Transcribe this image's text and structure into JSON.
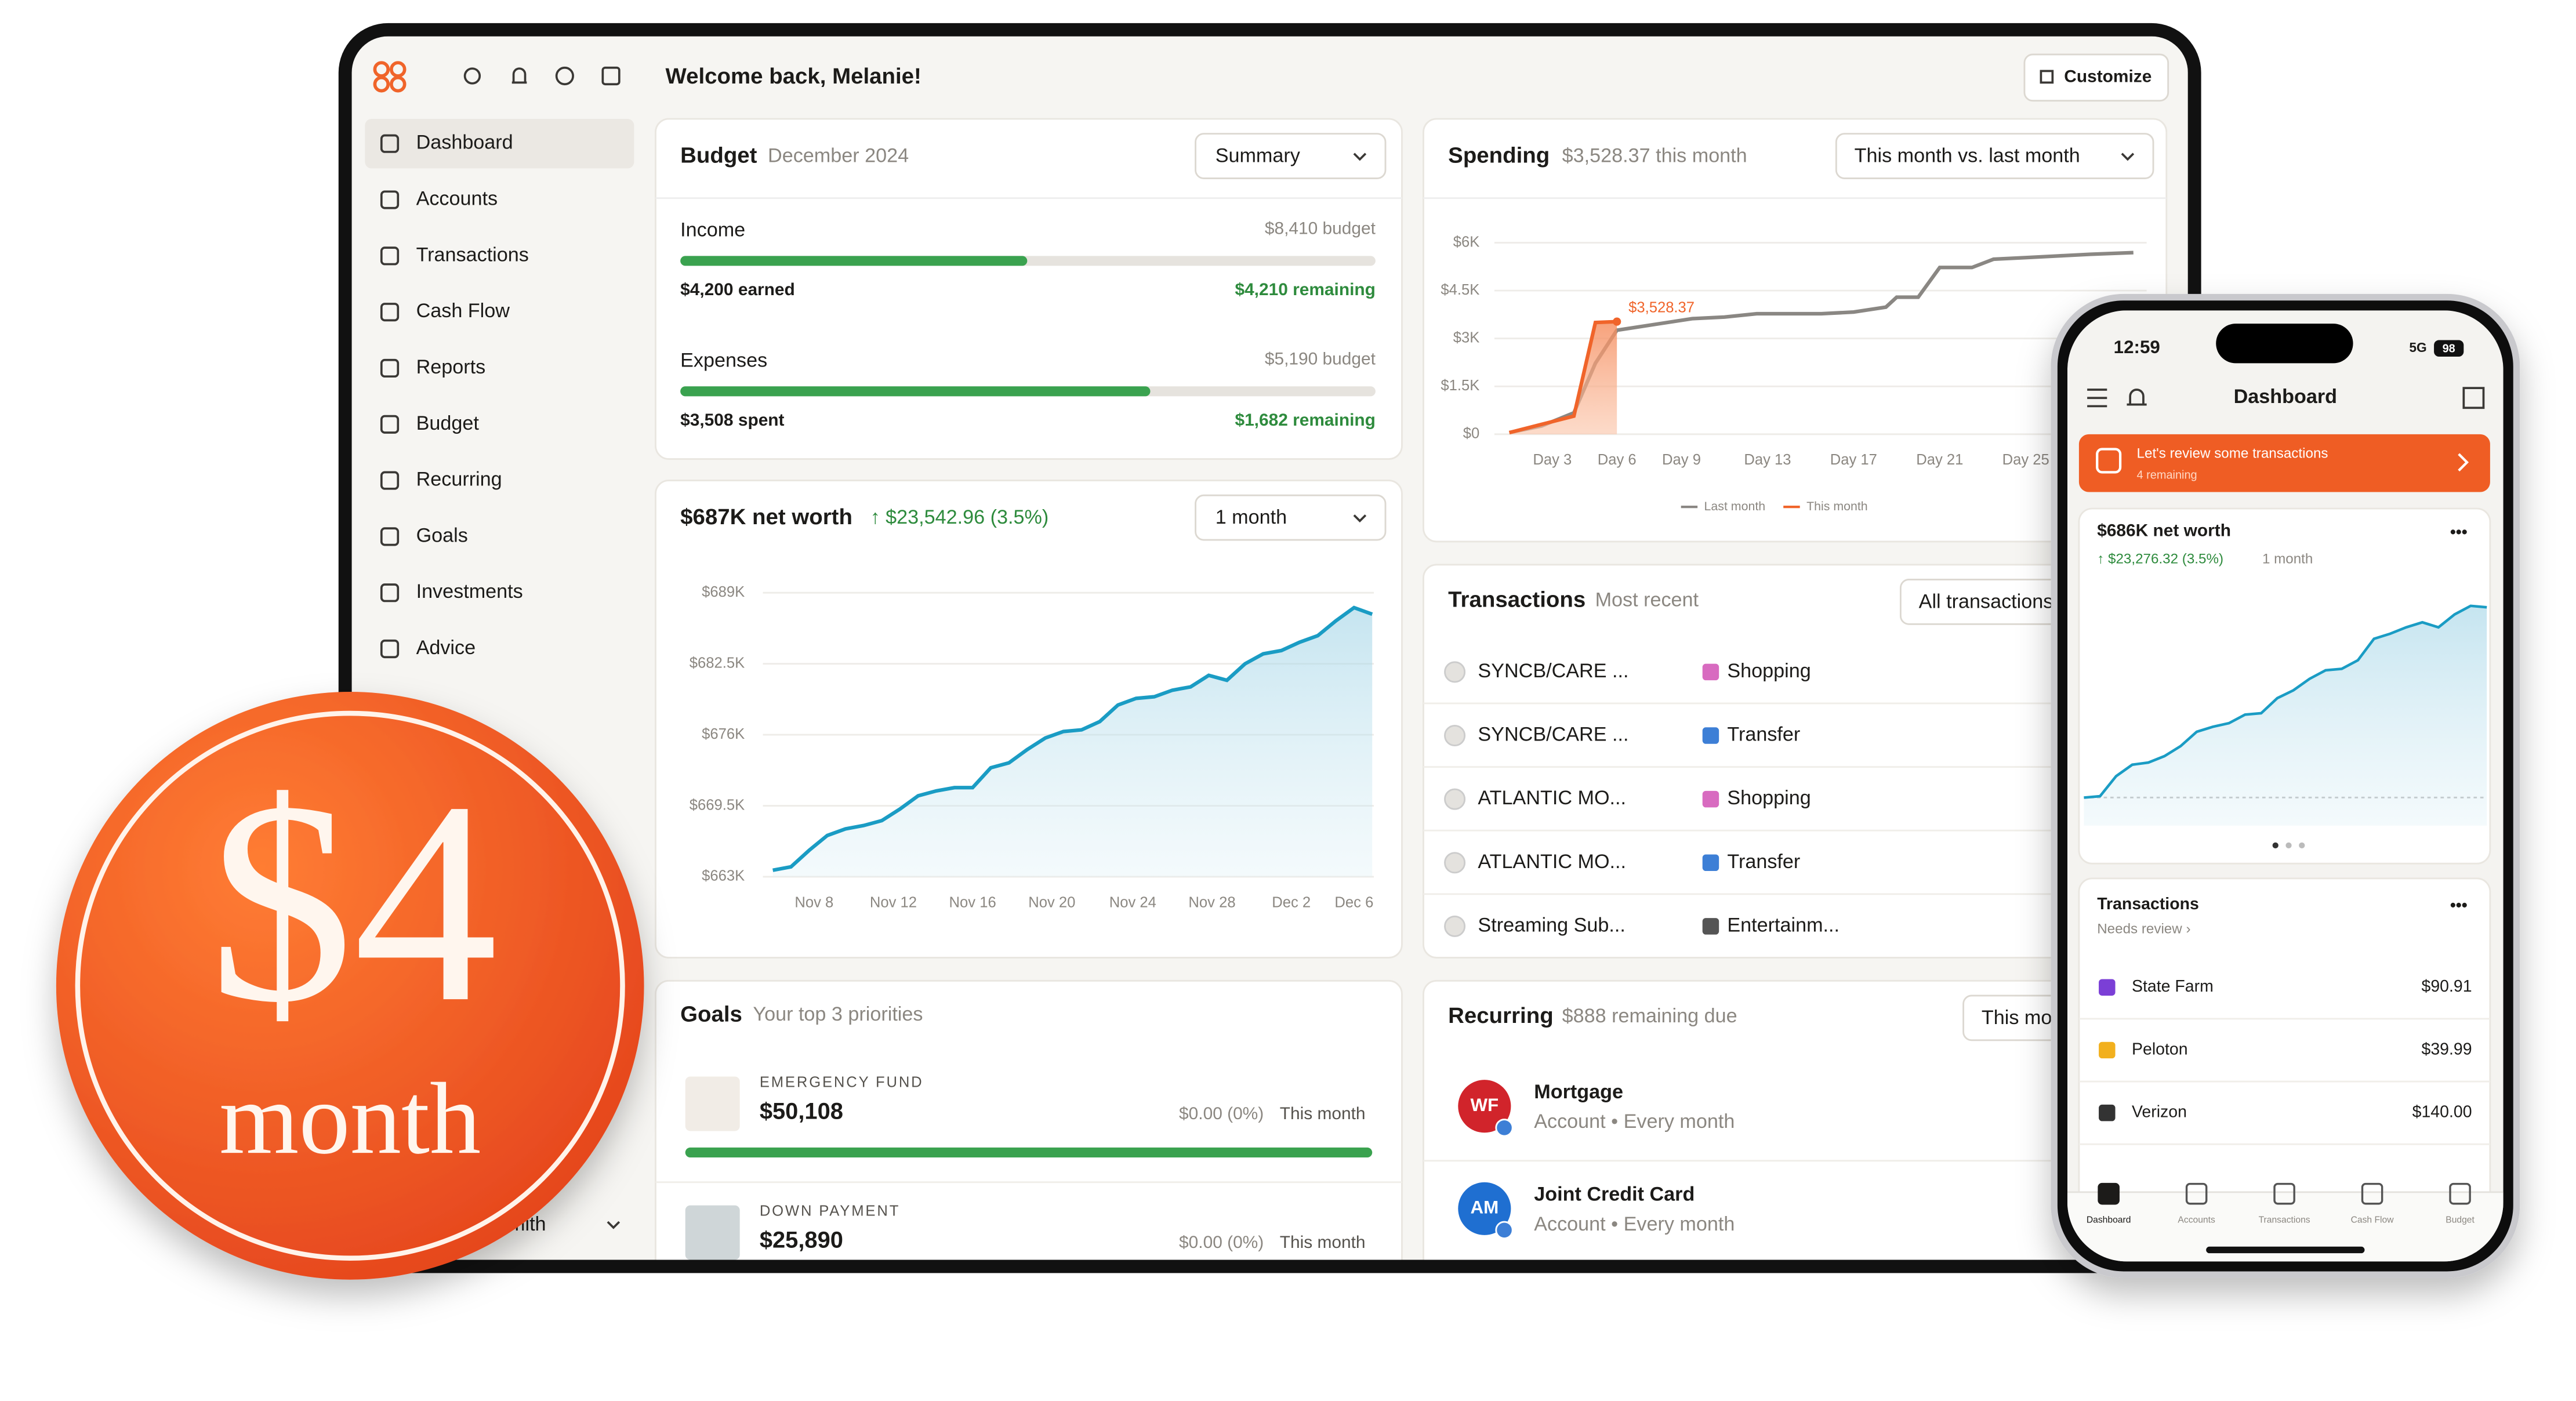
{
  "tablet": {
    "header": {
      "title": "Welcome back, Melanie!",
      "button": "Customize"
    },
    "sidebar": {
      "items": [
        "Dashboard",
        "Accounts",
        "Transactions",
        "Cash Flow",
        "Reports",
        "Budget",
        "Recurring",
        "Goals",
        "Investments",
        "Advice"
      ],
      "user": "Smith"
    },
    "budget": {
      "title": "Budget",
      "subtitle": "December 2024",
      "dropdown": "Summary",
      "rows": [
        {
          "label": "Income",
          "budget": "$8,410 budget",
          "amount": "$4,200 earned",
          "remaining": "$4,210 remaining",
          "progress": 49.9
        },
        {
          "label": "Expenses",
          "budget": "$5,190 budget",
          "amount": "$3,508 spent",
          "remaining": "$1,682 remaining",
          "progress": 67.6
        }
      ]
    },
    "net_worth": {
      "title": "$687K net worth",
      "change": "↑ $23,542.96 (3.5%)",
      "dropdown": "1 month",
      "chart": {
        "type": "line",
        "color": "#1a9cc4",
        "values": [
          663.6,
          663.91,
          665.42,
          666.78,
          667.38,
          667.69,
          668.14,
          669.2,
          670.41,
          670.86,
          671.16,
          671.16,
          672.98,
          673.43,
          674.64,
          675.7,
          676.3,
          676.45,
          677.21,
          678.72,
          679.33,
          679.48,
          680.08,
          680.38,
          681.44,
          680.99,
          682.5,
          683.41,
          683.71,
          684.47,
          685.07,
          686.43,
          687.64,
          687.04
        ],
        "ylim": [
          663,
          689
        ],
        "yticks": [
          {
            "value": 689,
            "label": "$689K"
          },
          {
            "value": 682.5,
            "label": "$682.5K"
          },
          {
            "value": 676,
            "label": "$676K"
          },
          {
            "value": 669.5,
            "label": "$669.5K"
          },
          {
            "value": 663,
            "label": "$663K"
          }
        ],
        "xlabels": [
          "Nov 8",
          "Nov 12",
          "Nov 16",
          "Nov 20",
          "Nov 24",
          "Nov 28",
          "Dec 2",
          "Dec 6"
        ]
      }
    },
    "spending": {
      "title": "Spending",
      "subtitle": "$3,528.37 this month",
      "dropdown": "This month vs. last month",
      "chart": {
        "type": "line",
        "xlim": [
          0,
          31
        ],
        "xticks": [
          {
            "value": 3,
            "label": "Day 3"
          },
          {
            "value": 6,
            "label": "Day 6"
          },
          {
            "value": 9,
            "label": "Day 9"
          },
          {
            "value": 13,
            "label": "Day 13"
          },
          {
            "value": 17,
            "label": "Day 17"
          },
          {
            "value": 21,
            "label": "Day 21"
          },
          {
            "value": 25,
            "label": "Day 25"
          }
        ],
        "ylim": [
          0,
          6000
        ],
        "yticks": [
          {
            "value": 0,
            "label": "$0"
          },
          {
            "value": 1500,
            "label": "$1.5K"
          },
          {
            "value": 3000,
            "label": "$3K"
          },
          {
            "value": 4500,
            "label": "$4.5K"
          },
          {
            "value": 6000,
            "label": "$6K"
          }
        ],
        "series": [
          {
            "name": "Last month",
            "color": "#8a8783",
            "x": [
              1,
              2.5,
              4,
              5,
              6,
              6.5,
              8,
              9.5,
              11,
              12.5,
              14,
              15.5,
              17,
              18.5,
              19,
              20,
              21,
              22.5,
              23.5,
              25,
              26.5,
              28,
              30
            ],
            "values": [
              52,
              259,
              672,
              2224,
              3259,
              3310,
              3466,
              3621,
              3672,
              3776,
              3776,
              3776,
              3828,
              3983,
              4293,
              4293,
              5224,
              5224,
              5483,
              5534,
              5586,
              5638,
              5690
            ]
          },
          {
            "name": "This month",
            "color": "#f0642a",
            "x": [
              1,
              2.5,
              4,
              5,
              6
            ],
            "values": [
              52,
              310,
              569,
              3500,
              3528.37
            ]
          }
        ],
        "annotation": "$3,528.37"
      }
    },
    "transactions": {
      "title": "Transactions",
      "subtitle": "Most recent",
      "dropdown": "All transactions",
      "rows": [
        {
          "merchant": "SYNCB/CARE ...",
          "category": "Shopping"
        },
        {
          "merchant": "SYNCB/CARE ...",
          "category": "Transfer"
        },
        {
          "merchant": "ATLANTIC MO...",
          "category": "Shopping"
        },
        {
          "merchant": "ATLANTIC MO...",
          "category": "Transfer"
        },
        {
          "merchant": "Streaming Sub...",
          "category": "Entertainm..."
        }
      ]
    },
    "goals": {
      "title": "Goals",
      "subtitle": "Your top 3 priorities",
      "items": [
        {
          "label": "EMERGENCY FUND",
          "amount": "$50,108",
          "change": "$0.00 (0%)",
          "period": "This month",
          "progress": 100
        },
        {
          "label": "DOWN PAYMENT",
          "amount": "$25,890",
          "change": "$0.00 (0%)",
          "period": "This month"
        }
      ]
    },
    "recurring": {
      "title": "Recurring",
      "subtitle": "$888 remaining due",
      "dropdown": "This month",
      "items": [
        {
          "logo": "WF",
          "name": "Mortgage",
          "detail": "Account • Every month"
        },
        {
          "logo": "AM",
          "name": "Joint Credit Card",
          "detail": "Account • Every month"
        }
      ]
    }
  },
  "sticker": {
    "price": "$4",
    "unit": "month"
  },
  "phone": {
    "status": {
      "time": "12:59",
      "network": "5G",
      "battery": "98"
    },
    "title": "Dashboard",
    "banner": {
      "title": "Let's review some transactions",
      "subtitle": "4 remaining"
    },
    "net_worth": {
      "title": "$686K net worth",
      "change": "↑ $23,276.32 (3.5%)",
      "period": "1 month",
      "chart": {
        "type": "line",
        "color": "#1a9cc4",
        "ylim": [
          660,
          690
        ],
        "values": [
          661.6,
          661.8,
          664.6,
          666.2,
          666.5,
          667.4,
          668.8,
          670.8,
          671.5,
          672,
          673.2,
          673.4,
          675.5,
          676.6,
          678.2,
          679.4,
          679.6,
          680.8,
          683.8,
          684.5,
          685.4,
          686.1,
          685.4,
          687.2,
          688.4,
          688.2
        ]
      }
    },
    "transactions": {
      "title": "Transactions",
      "subtitle": "Needs review ›",
      "rows": [
        {
          "name": "State Farm",
          "amount": "$90.91"
        },
        {
          "name": "Peloton",
          "amount": "$39.99"
        },
        {
          "name": "Verizon",
          "amount": "$140.00"
        }
      ]
    },
    "tabs": [
      "Dashboard",
      "Accounts",
      "Transactions",
      "Cash Flow",
      "Budget"
    ]
  }
}
